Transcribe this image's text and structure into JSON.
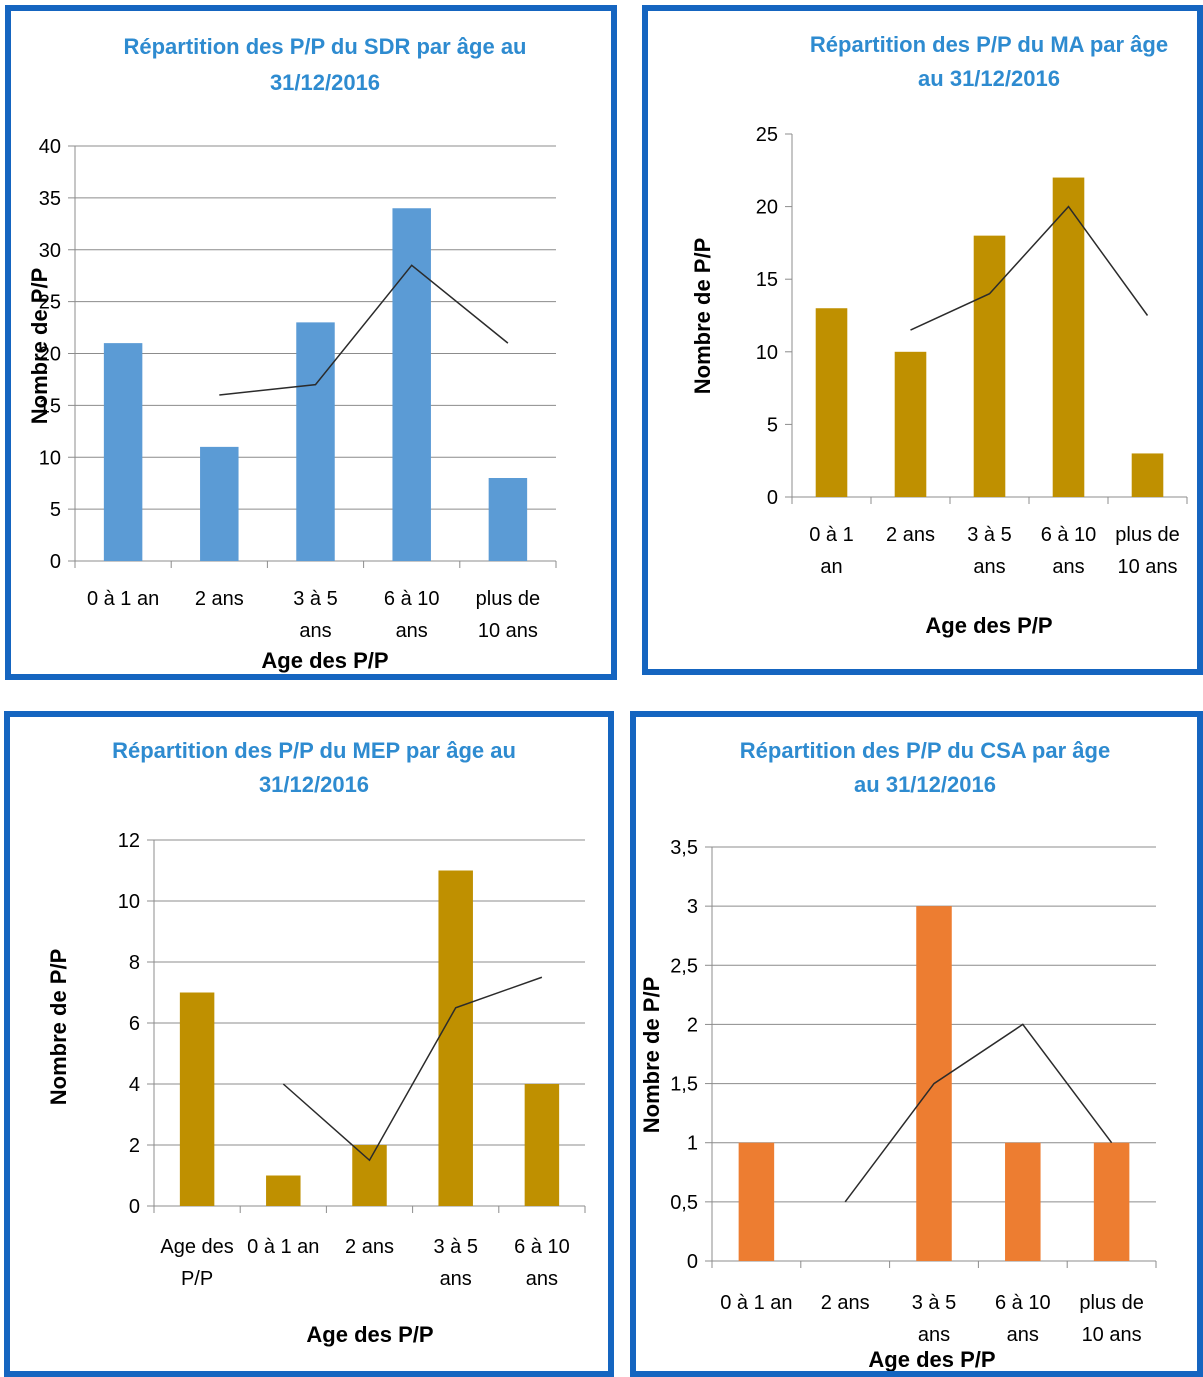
{
  "chart_data": [
    {
      "type": "bar",
      "title_lines": [
        "Répartition des P/P du SDR par âge au",
        "31/12/2016"
      ],
      "xlabel": "Age des P/P",
      "ylabel": "Nombre de P/P",
      "ylim": [
        0,
        40
      ],
      "yticks": [
        "0",
        "5",
        "10",
        "15",
        "20",
        "25",
        "30",
        "35",
        "40"
      ],
      "categories": [
        [
          "0 à 1 an"
        ],
        [
          "2 ans"
        ],
        [
          "3 à 5",
          "ans"
        ],
        [
          "6 à 10",
          "ans"
        ],
        [
          "plus de",
          "10 ans"
        ]
      ],
      "values": [
        21,
        11,
        23,
        34,
        8
      ],
      "trend": [
        null,
        16,
        17,
        28.5,
        21
      ],
      "bar_color": "#5b9bd5",
      "grid": true,
      "legend": "none"
    },
    {
      "type": "bar",
      "title_lines": [
        "Répartition des P/P du MA par âge",
        "au 31/12/2016"
      ],
      "xlabel": "Age des P/P",
      "ylabel": "Nombre de P/P",
      "ylim": [
        0,
        25
      ],
      "yticks": [
        "0",
        "5",
        "10",
        "15",
        "20",
        "25"
      ],
      "categories": [
        [
          "0 à 1",
          "an"
        ],
        [
          "2 ans"
        ],
        [
          "3 à 5",
          "ans"
        ],
        [
          "6 à 10",
          "ans"
        ],
        [
          "plus de",
          "10 ans"
        ]
      ],
      "values": [
        13,
        10,
        18,
        22,
        3
      ],
      "trend": [
        null,
        11.5,
        14,
        20,
        12.5
      ],
      "bar_color": "#bf9000",
      "grid": false,
      "legend": "none"
    },
    {
      "type": "bar",
      "title_lines": [
        "Répartition des P/P du MEP par âge au",
        "31/12/2016"
      ],
      "xlabel": "Age des P/P",
      "ylabel": "Nombre de P/P",
      "ylim": [
        0,
        12
      ],
      "yticks": [
        "0",
        "2",
        "4",
        "6",
        "8",
        "10",
        "12"
      ],
      "categories": [
        [
          "Age des",
          "P/P"
        ],
        [
          "0 à 1 an"
        ],
        [
          "2 ans"
        ],
        [
          "3 à 5",
          "ans"
        ],
        [
          "6 à 10",
          "ans"
        ]
      ],
      "values": [
        7,
        1,
        2,
        11,
        4
      ],
      "trend": [
        null,
        4,
        1.5,
        6.5,
        7.5
      ],
      "bar_color": "#bf9000",
      "grid": true,
      "legend": "none"
    },
    {
      "type": "bar",
      "title_lines": [
        "Répartition des P/P du CSA par âge",
        "au 31/12/2016"
      ],
      "xlabel": "Age des P/P",
      "ylabel": "Nombre de P/P",
      "ylim": [
        0,
        3.5
      ],
      "yticks": [
        "0",
        "0,5",
        "1",
        "1,5",
        "2",
        "2,5",
        "3",
        "3,5"
      ],
      "categories": [
        [
          "0 à 1 an"
        ],
        [
          "2 ans"
        ],
        [
          "3 à 5",
          "ans"
        ],
        [
          "6 à 10",
          "ans"
        ],
        [
          "plus de",
          "10 ans"
        ]
      ],
      "values": [
        1,
        0,
        3,
        1,
        1
      ],
      "trend": [
        null,
        0.5,
        1.5,
        2,
        1
      ],
      "bar_color": "#ed7d31",
      "grid": true,
      "legend": "none"
    }
  ],
  "colors": {
    "title": "#2e8bd0",
    "frame": "#1565c0",
    "axis": "#8c8c8c",
    "text": "#000000",
    "trend": "#2b2b2b"
  }
}
